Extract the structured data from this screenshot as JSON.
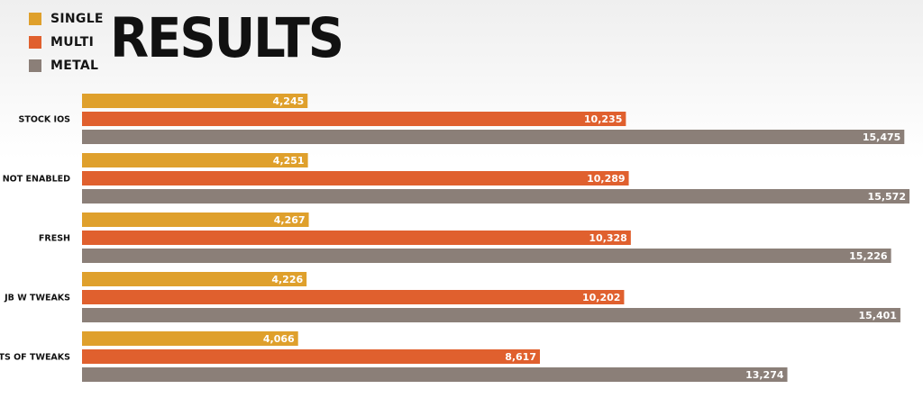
{
  "colors": {
    "single": "#dfa02c",
    "multi": "#e0602e",
    "metal": "#8b7f78"
  },
  "legend": {
    "single": "SINGLE",
    "multi": "MULTI",
    "metal": "METAL"
  },
  "chart_data": {
    "type": "bar",
    "orientation": "horizontal",
    "title": "RESULTS",
    "categories": [
      "STOCK IOS",
      "NOT ENABLED",
      "FRESH",
      "JB W TWEAKS",
      "LOTS OF TWEAKS"
    ],
    "series": [
      {
        "name": "SINGLE",
        "values": [
          4245,
          4251,
          4267,
          4226,
          4066
        ],
        "labels": [
          "4,245",
          "4,251",
          "4,267",
          "4,226",
          "4,066"
        ]
      },
      {
        "name": "MULTI",
        "values": [
          10235,
          10289,
          10328,
          10202,
          8617
        ],
        "labels": [
          "10,235",
          "10,289",
          "10,328",
          "10,202",
          "8,617"
        ]
      },
      {
        "name": "METAL",
        "values": [
          15475,
          15572,
          15226,
          15401,
          13274
        ],
        "labels": [
          "15,475",
          "15,572",
          "15,226",
          "15,401",
          "13,274"
        ]
      }
    ],
    "xlim": [
      0,
      15572
    ],
    "grid": false,
    "legend_position": "top-left"
  }
}
